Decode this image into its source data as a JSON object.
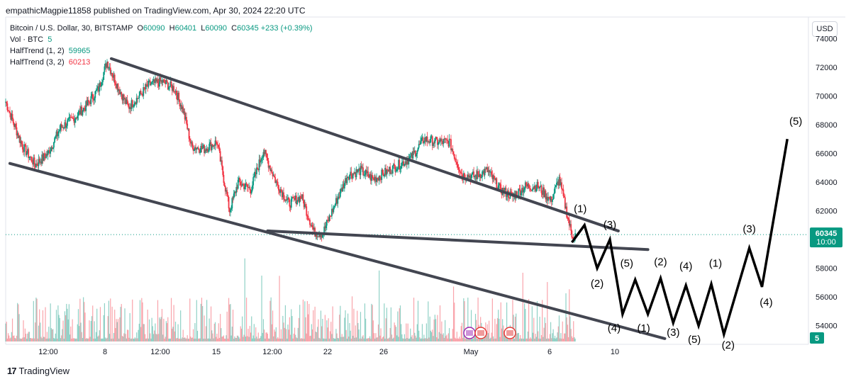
{
  "header": {
    "published": "empathicMagpie11858 published on TradingView.com, Apr 30, 2024 22:20 UTC"
  },
  "legend": {
    "symbol": "Bitcoin / U.S. Dollar, 30, BITSTAMP",
    "o_label": "O",
    "o": "60090",
    "h_label": "H",
    "h": "60401",
    "l_label": "L",
    "l": "60090",
    "c_label": "C",
    "c": "60345",
    "change": "+233 (+0.39%)",
    "vol_label": "Vol · BTC",
    "vol": "5",
    "ind1_label": "HalfTrend (1, 2)",
    "ind1": "59965",
    "ind2_label": "HalfTrend (3, 2)",
    "ind2": "60213"
  },
  "currency_button": "USD",
  "price_tag": {
    "price": "60345",
    "countdown": "10:00"
  },
  "volume_tag": "5",
  "footer": {
    "brand": "TradingView",
    "logo": "17"
  },
  "colors": {
    "up": "#089981",
    "down": "#f23645",
    "line": "#434651",
    "projection": "#000000"
  },
  "chart_data": {
    "type": "candlestick",
    "symbol": "BTCUSD",
    "interval": "30",
    "y_axis": {
      "ticks": [
        54000,
        56000,
        58000,
        60000,
        62000,
        64000,
        66000,
        68000,
        70000,
        72000,
        74000
      ],
      "range": [
        52700,
        75500
      ]
    },
    "x_axis": {
      "ticks": [
        "12:00",
        "8",
        "12:00",
        "15",
        "12:00",
        "22",
        "26",
        "May",
        "6",
        "10"
      ]
    },
    "price_path": [
      [
        0,
        69600
      ],
      [
        2,
        68000
      ],
      [
        4,
        66500
      ],
      [
        7,
        65200
      ],
      [
        10,
        66000
      ],
      [
        13,
        67800
      ],
      [
        16,
        68400
      ],
      [
        19,
        69300
      ],
      [
        22,
        70500
      ],
      [
        24,
        72400
      ],
      [
        26,
        71000
      ],
      [
        29,
        69200
      ],
      [
        31,
        69800
      ],
      [
        34,
        70800
      ],
      [
        37,
        71000
      ],
      [
        40,
        70500
      ],
      [
        42,
        69000
      ],
      [
        44,
        66500
      ],
      [
        47,
        66300
      ],
      [
        50,
        66800
      ],
      [
        53,
        62000
      ],
      [
        55,
        64000
      ],
      [
        58,
        63500
      ],
      [
        61,
        66200
      ],
      [
        64,
        64000
      ],
      [
        67,
        62500
      ],
      [
        70,
        63000
      ],
      [
        73,
        60500
      ],
      [
        75,
        60400
      ],
      [
        78,
        62500
      ],
      [
        81,
        64500
      ],
      [
        84,
        64800
      ],
      [
        87,
        64200
      ],
      [
        90,
        64700
      ],
      [
        93,
        65200
      ],
      [
        96,
        65700
      ],
      [
        99,
        67000
      ],
      [
        102,
        66800
      ],
      [
        105,
        66800
      ],
      [
        108,
        64500
      ],
      [
        111,
        64400
      ],
      [
        114,
        64800
      ],
      [
        117,
        63500
      ],
      [
        120,
        63000
      ],
      [
        123,
        63700
      ],
      [
        126,
        63700
      ],
      [
        129,
        62700
      ],
      [
        131,
        64200
      ],
      [
        133,
        61600
      ],
      [
        134,
        60300
      ],
      [
        135,
        60345
      ]
    ],
    "trendlines": [
      {
        "name": "upper channel",
        "points": [
          [
            25,
            72600
          ],
          [
            145,
            60600
          ]
        ]
      },
      {
        "name": "lower channel",
        "points": [
          [
            1,
            65300
          ],
          [
            156,
            53100
          ]
        ]
      },
      {
        "name": "support",
        "points": [
          [
            62,
            60600
          ],
          [
            152,
            59300
          ]
        ]
      }
    ],
    "projection": {
      "path": [
        [
          134,
          59800
        ],
        [
          137,
          61000
        ],
        [
          140,
          58000
        ],
        [
          143,
          60000
        ],
        [
          146,
          54800
        ],
        [
          149,
          57200
        ],
        [
          152,
          54800
        ],
        [
          155,
          57300
        ],
        [
          158,
          54200
        ],
        [
          161,
          56800
        ],
        [
          164,
          54000
        ],
        [
          167,
          56900
        ],
        [
          170,
          53400
        ],
        [
          176,
          59400
        ],
        [
          179,
          56700
        ],
        [
          185,
          67000
        ]
      ],
      "labels": [
        {
          "text": "(1)",
          "x": 136,
          "y": 61900
        },
        {
          "text": "(3)",
          "x": 143,
          "y": 60800
        },
        {
          "text": "(2)",
          "x": 140,
          "y": 56700
        },
        {
          "text": "(5)",
          "x": 147,
          "y": 58100
        },
        {
          "text": "(4)",
          "x": 144,
          "y": 53600
        },
        {
          "text": "(1)",
          "x": 151,
          "y": 53600
        },
        {
          "text": "(2)",
          "x": 155,
          "y": 58200
        },
        {
          "text": "(3)",
          "x": 158,
          "y": 53300
        },
        {
          "text": "(4)",
          "x": 161,
          "y": 57900
        },
        {
          "text": "(5)",
          "x": 163,
          "y": 52800
        },
        {
          "text": "(1)",
          "x": 168,
          "y": 58100
        },
        {
          "text": "(2)",
          "x": 171,
          "y": 52400
        },
        {
          "text": "(3)",
          "x": 176,
          "y": 60500
        },
        {
          "text": "(4)",
          "x": 180,
          "y": 55400
        },
        {
          "text": "(5)",
          "x": 187,
          "y": 68000
        }
      ]
    },
    "last_price": 60345
  }
}
